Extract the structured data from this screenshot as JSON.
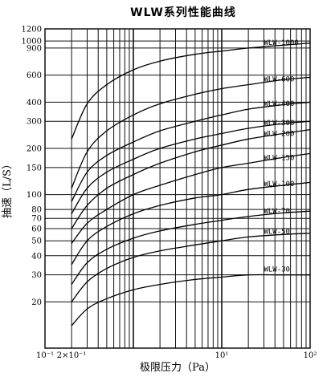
{
  "chart_data": {
    "type": "line",
    "title": "WLW系列性能曲线",
    "xlabel": "极限压力（Pa）",
    "ylabel": "抽速（L/S）",
    "xscale": "log",
    "yscale": "log",
    "xlim": [
      0.1,
      100
    ],
    "ylim": [
      10,
      1200
    ],
    "x_ticks": [
      {
        "value": 0.1,
        "label": "10⁻¹"
      },
      {
        "value": 0.2,
        "label": "2×10⁻¹"
      },
      {
        "value": 10,
        "label": "10¹"
      },
      {
        "value": 100,
        "label": "10²"
      }
    ],
    "y_ticks": [
      20,
      30,
      40,
      50,
      60,
      70,
      80,
      100,
      150,
      200,
      300,
      400,
      600,
      900,
      1000,
      1200
    ],
    "grid": true,
    "series": [
      {
        "name": "WLW-1000",
        "x": [
          0.2,
          0.3,
          0.5,
          1,
          2,
          5,
          10,
          20,
          50,
          100
        ],
        "y": [
          230,
          390,
          520,
          650,
          740,
          820,
          860,
          900,
          940,
          970
        ]
      },
      {
        "name": "WLW-600",
        "x": [
          0.2,
          0.3,
          0.5,
          1,
          2,
          5,
          10,
          20,
          50,
          100
        ],
        "y": [
          110,
          190,
          260,
          330,
          390,
          450,
          490,
          520,
          560,
          580
        ]
      },
      {
        "name": "WLW-400",
        "x": [
          0.2,
          0.3,
          0.5,
          1,
          2,
          5,
          10,
          20,
          50,
          100
        ],
        "y": [
          90,
          140,
          180,
          220,
          260,
          300,
          330,
          360,
          385,
          400
        ]
      },
      {
        "name": "WLW-300",
        "x": [
          0.2,
          0.3,
          0.5,
          1,
          2,
          5,
          10,
          20,
          50,
          100
        ],
        "y": [
          75,
          110,
          140,
          170,
          200,
          230,
          250,
          270,
          290,
          300
        ]
      },
      {
        "name": "WLW-200",
        "x": [
          0.2,
          0.3,
          0.5,
          1,
          2,
          5,
          10,
          20,
          50,
          100
        ],
        "y": [
          60,
          85,
          110,
          135,
          160,
          190,
          210,
          230,
          250,
          265
        ]
      },
      {
        "name": "WLW-150",
        "x": [
          0.2,
          0.3,
          0.5,
          1,
          2,
          5,
          10,
          20,
          50,
          100
        ],
        "y": [
          48,
          65,
          80,
          100,
          115,
          135,
          150,
          160,
          175,
          185
        ]
      },
      {
        "name": "WLW-100",
        "x": [
          0.2,
          0.3,
          0.5,
          1,
          2,
          5,
          10,
          20,
          50,
          100
        ],
        "y": [
          35,
          50,
          62,
          75,
          85,
          95,
          100,
          108,
          115,
          120
        ]
      },
      {
        "name": "WLW-70",
        "x": [
          0.2,
          0.3,
          0.5,
          1,
          2,
          5,
          10,
          20,
          50,
          100
        ],
        "y": [
          26,
          36,
          44,
          52,
          58,
          64,
          68,
          72,
          76,
          78
        ]
      },
      {
        "name": "WLW-50",
        "x": [
          0.2,
          0.3,
          0.5,
          1,
          2,
          5,
          10,
          20,
          50,
          100
        ],
        "y": [
          20,
          27,
          33,
          39,
          43,
          47,
          50,
          53,
          55,
          56
        ]
      },
      {
        "name": "WLW-30",
        "x": [
          0.2,
          0.3,
          0.5,
          1,
          2,
          5,
          10,
          20,
          50,
          100
        ],
        "y": [
          14,
          18,
          21,
          24,
          26,
          28,
          29,
          30,
          30,
          30
        ]
      }
    ]
  }
}
